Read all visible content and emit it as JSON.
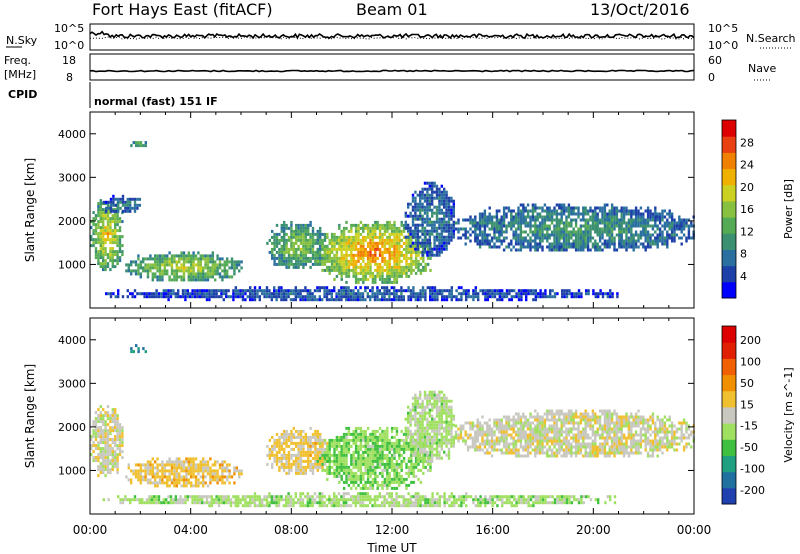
{
  "header": {
    "station": "Fort Hays East (fitACF)",
    "beam": "Beam 01",
    "date": "13/Oct/2016"
  },
  "top_panels": {
    "noise": {
      "left_label": "N.Sky",
      "right_label": "N.Search",
      "left_ticks": [
        "10^5",
        "10^0"
      ],
      "right_ticks": [
        "10^5",
        "10^0"
      ]
    },
    "freq": {
      "left_label_1": "Freq.",
      "left_label_2": "[MHz]",
      "right_label": "Nave",
      "left_ticks": [
        "18",
        "8"
      ],
      "right_ticks": [
        "60",
        "0"
      ]
    },
    "cpid_label": "CPID",
    "cpid_text": "normal (fast) 151 IF"
  },
  "chart_data": [
    {
      "type": "heatmap",
      "title": "",
      "quantity": "Power",
      "xlabel": "",
      "ylabel": "Slant Range [km]",
      "xlim": [
        "00:00",
        "24:00"
      ],
      "ylim": [
        0,
        4500
      ],
      "yticks": [
        "1000",
        "2000",
        "3000",
        "4000"
      ],
      "colorbar": {
        "label": "Power [dB]",
        "ticks": [
          "4",
          "8",
          "12",
          "16",
          "20",
          "24",
          "28"
        ],
        "range": [
          0,
          32
        ],
        "colors": [
          "#0000ff",
          "#1c3fa8",
          "#2a6fa0",
          "#3a9070",
          "#55aa55",
          "#88c040",
          "#ccd020",
          "#f0b000",
          "#f08000",
          "#e84010",
          "#dd0000"
        ]
      },
      "regions": [
        {
          "t_start": 0.0,
          "t_end": 1.3,
          "r_low": 900,
          "r_high": 2500,
          "value": 18
        },
        {
          "t_start": 0.5,
          "t_end": 2.0,
          "r_low": 2200,
          "r_high": 2600,
          "value": 8
        },
        {
          "t_start": 1.5,
          "t_end": 2.2,
          "r_low": 3700,
          "r_high": 3900,
          "value": 12
        },
        {
          "t_start": 1.4,
          "t_end": 6.0,
          "r_low": 650,
          "r_high": 1300,
          "value": 16
        },
        {
          "t_start": 7.0,
          "t_end": 9.5,
          "r_low": 900,
          "r_high": 2000,
          "value": 14
        },
        {
          "t_start": 9.0,
          "t_end": 13.5,
          "r_low": 600,
          "r_high": 2000,
          "value": 22
        },
        {
          "t_start": 12.5,
          "t_end": 14.5,
          "r_low": 1200,
          "r_high": 2900,
          "value": 8
        },
        {
          "t_start": 14.5,
          "t_end": 24.0,
          "r_low": 1300,
          "r_high": 2400,
          "value": 10
        },
        {
          "t_start": 0.5,
          "t_end": 21.0,
          "r_low": 200,
          "r_high": 500,
          "value": 6
        }
      ]
    },
    {
      "type": "heatmap",
      "title": "",
      "quantity": "Velocity",
      "xlabel": "Time UT",
      "ylabel": "Slant Range [km]",
      "xlim": [
        "00:00",
        "24:00"
      ],
      "ylim": [
        0,
        4500
      ],
      "xticks": [
        "00:00",
        "04:00",
        "08:00",
        "12:00",
        "16:00",
        "20:00",
        "00:00"
      ],
      "yticks": [
        "1000",
        "2000",
        "3000",
        "4000"
      ],
      "colorbar": {
        "label": "Velocity [m s^-1]",
        "ticks": [
          "200",
          "100",
          "50",
          "15",
          "-15",
          "-50",
          "-100",
          "-200"
        ],
        "range": [
          -250,
          250
        ],
        "colors": [
          "#2040b0",
          "#2070a0",
          "#20a080",
          "#40c040",
          "#a0e060",
          "#c8c8c0",
          "#f0c030",
          "#f09000",
          "#f06000",
          "#e02000",
          "#dd0000"
        ]
      },
      "regions": [
        {
          "t_start": 0.0,
          "t_end": 1.3,
          "r_low": 900,
          "r_high": 2500,
          "value": 0
        },
        {
          "t_start": 1.4,
          "t_end": 6.0,
          "r_low": 650,
          "r_high": 1300,
          "value": 40
        },
        {
          "t_start": 1.5,
          "t_end": 2.2,
          "r_low": 3700,
          "r_high": 3900,
          "value": -150
        },
        {
          "t_start": 7.0,
          "t_end": 9.5,
          "r_low": 900,
          "r_high": 2000,
          "value": 30
        },
        {
          "t_start": 9.0,
          "t_end": 13.5,
          "r_low": 600,
          "r_high": 2000,
          "value": -60
        },
        {
          "t_start": 12.5,
          "t_end": 14.5,
          "r_low": 1200,
          "r_high": 2900,
          "value": -30
        },
        {
          "t_start": 14.5,
          "t_end": 24.0,
          "r_low": 1300,
          "r_high": 2400,
          "value": 0
        },
        {
          "t_start": 0.5,
          "t_end": 21.0,
          "r_low": 200,
          "r_high": 500,
          "value": -40
        }
      ]
    }
  ]
}
